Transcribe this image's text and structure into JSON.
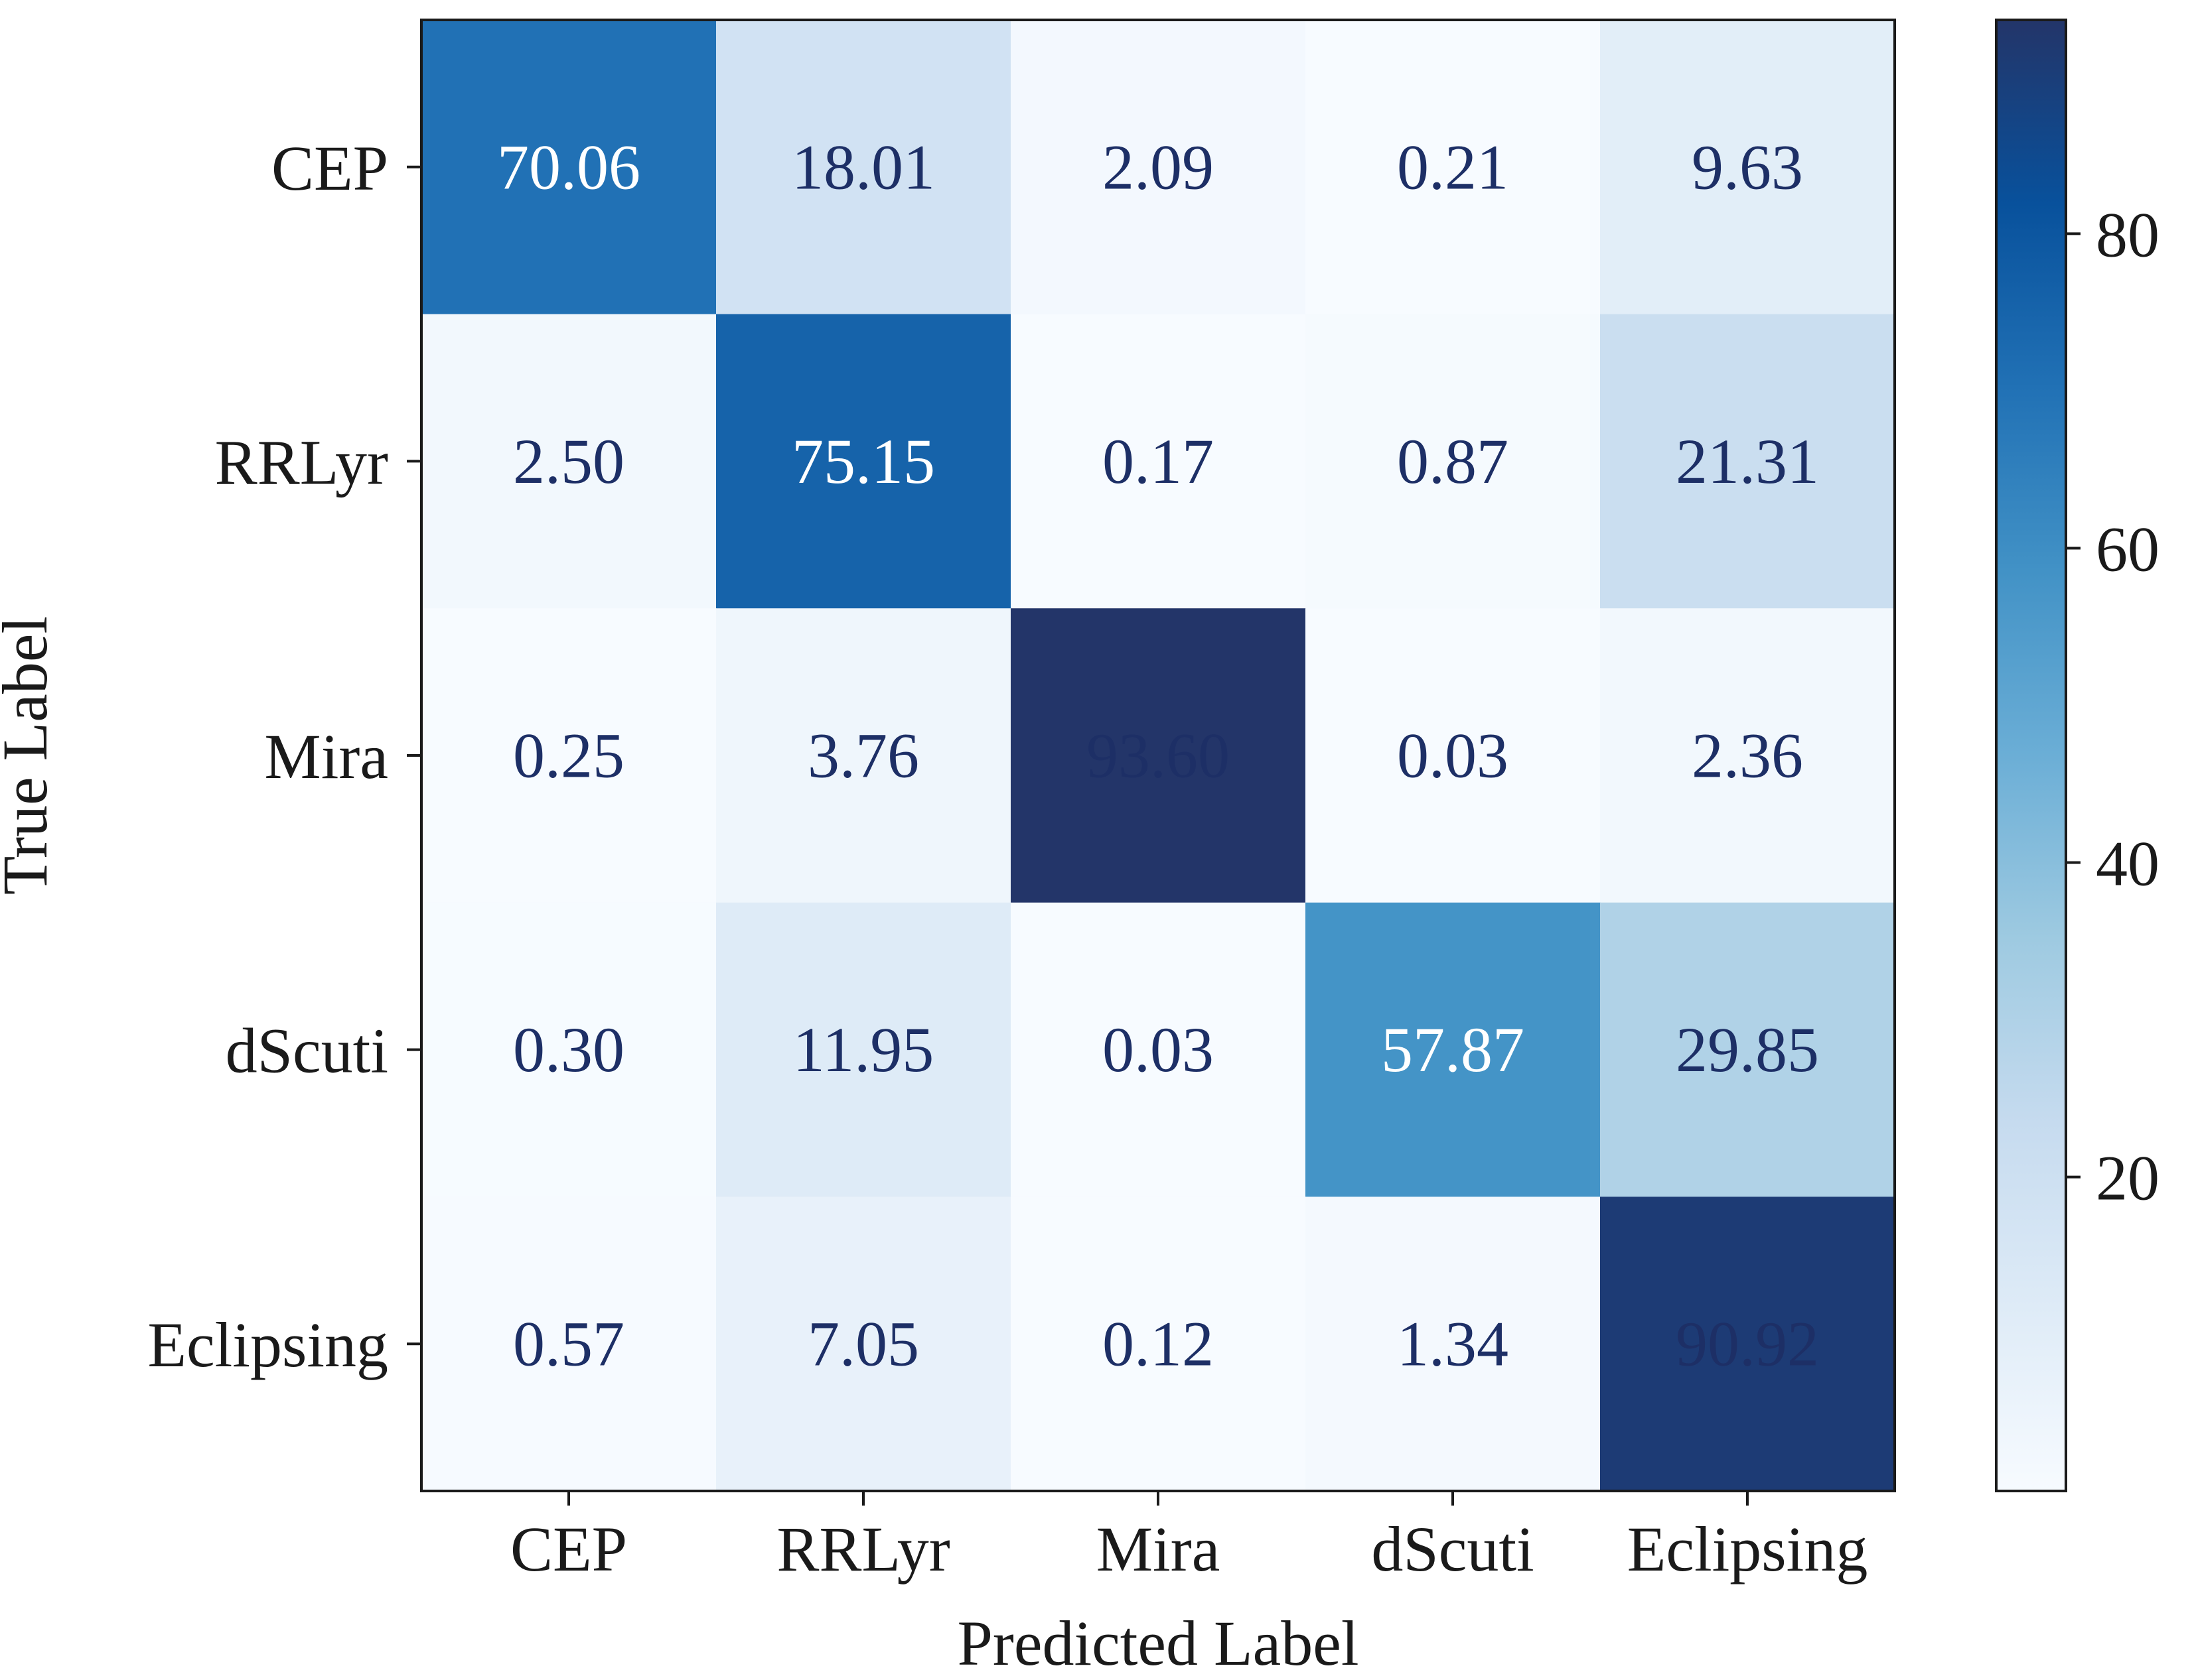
{
  "chart_data": {
    "type": "heatmap",
    "x_categories": [
      "CEP",
      "RRLyr",
      "Mira",
      "dScuti",
      "Eclipsing"
    ],
    "y_categories": [
      "CEP",
      "RRLyr",
      "Mira",
      "dScuti",
      "Eclipsing"
    ],
    "matrix": [
      [
        70.06,
        18.01,
        2.09,
        0.21,
        9.63
      ],
      [
        2.5,
        75.15,
        0.17,
        0.87,
        21.31
      ],
      [
        0.25,
        3.76,
        93.6,
        0.03,
        2.36
      ],
      [
        0.3,
        11.95,
        0.03,
        57.87,
        29.85
      ],
      [
        0.57,
        7.05,
        0.12,
        1.34,
        90.92
      ]
    ],
    "cell_labels": [
      [
        "70.06",
        "18.01",
        "2.09",
        "0.21",
        "9.63"
      ],
      [
        "2.50",
        "75.15",
        "0.17",
        "0.87",
        "21.31"
      ],
      [
        "0.25",
        "3.76",
        "93.60",
        "0.03",
        "2.36"
      ],
      [
        "0.30",
        "11.95",
        "0.03",
        "57.87",
        "29.85"
      ],
      [
        "0.57",
        "7.05",
        "0.12",
        "1.34",
        "90.92"
      ]
    ],
    "xlabel": "Predicted Label",
    "ylabel": "True Label",
    "colormap": "Blues",
    "vmin": 0.03,
    "vmax": 93.6,
    "colorbar": {
      "ticks": [
        20,
        40,
        60,
        80
      ],
      "tick_labels": [
        "20",
        "40",
        "60",
        "80"
      ],
      "position": "right"
    },
    "grid": false
  }
}
